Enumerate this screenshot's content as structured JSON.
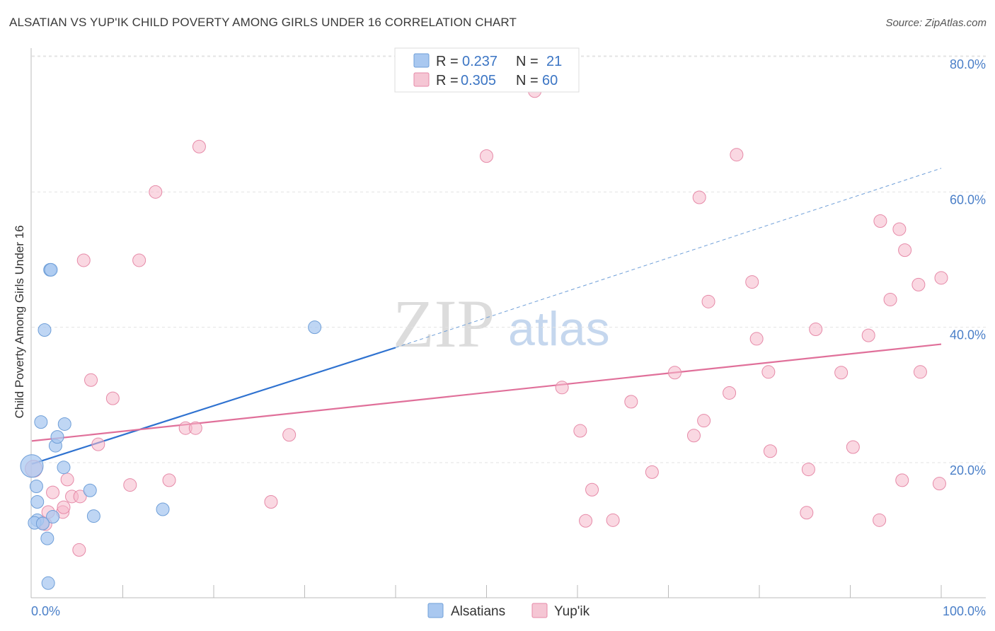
{
  "title": "ALSATIAN VS YUP'IK CHILD POVERTY AMONG GIRLS UNDER 16 CORRELATION CHART",
  "source": "Source: ZipAtlas.com",
  "watermark": {
    "zip": "ZIP",
    "atlas": "atlas"
  },
  "chart_data": {
    "type": "scatter",
    "title": "ALSATIAN VS YUP'IK CHILD POVERTY AMONG GIRLS UNDER 16 CORRELATION CHART",
    "xlabel": "",
    "ylabel": "Child Poverty Among Girls Under 16",
    "xlim": [
      0,
      100
    ],
    "ylim": [
      0,
      82
    ],
    "x_tick_labels": [
      "0.0%",
      "100.0%"
    ],
    "y_ticks": [
      20,
      40,
      60,
      80
    ],
    "y_tick_labels": [
      "20.0%",
      "40.0%",
      "60.0%",
      "80.0%"
    ],
    "grid": true,
    "legend_top": [
      {
        "r_label": "R =",
        "r_value": "0.237",
        "n_label": "N =",
        "n_value": "21",
        "color": "#a9c8f0"
      },
      {
        "r_label": "R =",
        "r_value": "0.305",
        "n_label": "N =",
        "n_value": "60",
        "color": "#f5b8cb"
      }
    ],
    "series": [
      {
        "name": "Alsatians",
        "color": "#a9c8f0",
        "stroke": "#6f9fd8",
        "line_color": "#2f72d0",
        "trend": {
          "x0": 0,
          "y0": 19.8,
          "x1": 40,
          "y1": 37.0,
          "x_dash_end": 100,
          "y_dash_end": 63.5
        },
        "points": [
          [
            0,
            19.5,
            16
          ],
          [
            0.5,
            16.5,
            9
          ],
          [
            0.6,
            14.2,
            9
          ],
          [
            0.6,
            11.5,
            9
          ],
          [
            1.0,
            26.0,
            9
          ],
          [
            1.4,
            39.6,
            9
          ],
          [
            1.7,
            8.8,
            9
          ],
          [
            1.8,
            2.2,
            9
          ],
          [
            2.0,
            48.5,
            9
          ],
          [
            2.1,
            48.5,
            9
          ],
          [
            2.3,
            12.0,
            9
          ],
          [
            2.6,
            22.5,
            9
          ],
          [
            2.8,
            23.8,
            9
          ],
          [
            3.5,
            19.3,
            9
          ],
          [
            3.6,
            25.7,
            9
          ],
          [
            6.4,
            15.9,
            9
          ],
          [
            6.8,
            12.1,
            9
          ],
          [
            14.4,
            13.1,
            9
          ],
          [
            31.1,
            40.0,
            9
          ],
          [
            0.3,
            11.1,
            9
          ],
          [
            1.2,
            11.0,
            9
          ]
        ]
      },
      {
        "name": "Yup'ik",
        "color": "#f5b8cb",
        "stroke": "#e68aa8",
        "line_color": "#e0709a",
        "trend": {
          "x0": 0,
          "y0": 23.2,
          "x1": 100,
          "y1": 37.5
        },
        "points": [
          [
            0.2,
            19.1,
            12
          ],
          [
            1.2,
            11.1,
            9
          ],
          [
            1.5,
            10.9,
            9
          ],
          [
            1.8,
            12.7,
            9
          ],
          [
            2.3,
            15.6,
            9
          ],
          [
            3.4,
            12.7,
            9
          ],
          [
            3.5,
            13.4,
            9
          ],
          [
            3.9,
            17.5,
            9
          ],
          [
            4.4,
            15.0,
            9
          ],
          [
            5.2,
            7.1,
            9
          ],
          [
            5.3,
            15.0,
            9
          ],
          [
            5.7,
            49.9,
            9
          ],
          [
            6.5,
            32.2,
            9
          ],
          [
            7.3,
            22.7,
            9
          ],
          [
            8.9,
            29.5,
            9
          ],
          [
            10.8,
            16.7,
            9
          ],
          [
            11.8,
            49.9,
            9
          ],
          [
            13.6,
            60.0,
            9
          ],
          [
            15.1,
            17.4,
            9
          ],
          [
            16.9,
            25.1,
            9
          ],
          [
            18.0,
            25.1,
            9
          ],
          [
            18.4,
            66.7,
            9
          ],
          [
            26.3,
            14.2,
            9
          ],
          [
            28.3,
            24.1,
            9
          ],
          [
            50.0,
            65.3,
            9
          ],
          [
            55.3,
            74.9,
            9
          ],
          [
            58.3,
            31.1,
            9
          ],
          [
            60.3,
            24.7,
            9
          ],
          [
            60.9,
            11.4,
            9
          ],
          [
            61.6,
            16.0,
            9
          ],
          [
            63.9,
            11.5,
            9
          ],
          [
            65.9,
            29.0,
            9
          ],
          [
            68.2,
            18.6,
            9
          ],
          [
            70.7,
            33.3,
            9
          ],
          [
            72.8,
            24.0,
            9
          ],
          [
            73.4,
            59.2,
            9
          ],
          [
            73.9,
            26.2,
            9
          ],
          [
            74.4,
            43.8,
            9
          ],
          [
            76.7,
            30.3,
            9
          ],
          [
            77.5,
            65.5,
            9
          ],
          [
            79.2,
            46.7,
            9
          ],
          [
            79.7,
            38.3,
            9
          ],
          [
            81.0,
            33.4,
            9
          ],
          [
            81.2,
            21.7,
            9
          ],
          [
            85.2,
            12.6,
            9
          ],
          [
            85.4,
            19.0,
            9
          ],
          [
            86.2,
            39.7,
            9
          ],
          [
            89.0,
            33.3,
            9
          ],
          [
            90.3,
            22.3,
            9
          ],
          [
            92.0,
            38.8,
            9
          ],
          [
            93.2,
            11.5,
            9
          ],
          [
            93.3,
            55.7,
            9
          ],
          [
            94.4,
            44.1,
            9
          ],
          [
            95.4,
            54.5,
            9
          ],
          [
            95.7,
            17.4,
            9
          ],
          [
            96.0,
            51.4,
            9
          ],
          [
            97.5,
            46.3,
            9
          ],
          [
            97.7,
            33.4,
            9
          ],
          [
            99.8,
            16.9,
            9
          ],
          [
            100.0,
            47.3,
            9
          ]
        ]
      }
    ]
  }
}
